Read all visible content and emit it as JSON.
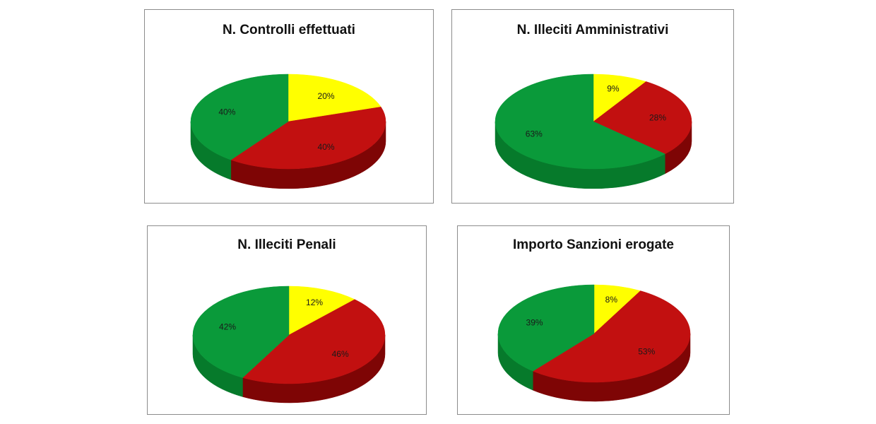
{
  "colors": {
    "green": "#0a9a3a",
    "green_side": "#067a2b",
    "red": "#c21010",
    "red_side": "#7e0505",
    "yellow": "#ffff00",
    "yellow_side": "#c8c800"
  },
  "chart_data": [
    {
      "type": "pie",
      "title": "N. Controlli effettuati",
      "slices": [
        {
          "label": "20%",
          "value": 20,
          "color": "yellow"
        },
        {
          "label": "40%",
          "value": 40,
          "color": "red"
        },
        {
          "label": "40%",
          "value": 40,
          "color": "green"
        }
      ]
    },
    {
      "type": "pie",
      "title": "N. Illeciti Amministrativi",
      "slices": [
        {
          "label": "9%",
          "value": 9,
          "color": "yellow"
        },
        {
          "label": "28%",
          "value": 28,
          "color": "red"
        },
        {
          "label": "63%",
          "value": 63,
          "color": "green"
        }
      ]
    },
    {
      "type": "pie",
      "title": "N. Illeciti Penali",
      "slices": [
        {
          "label": "12%",
          "value": 12,
          "color": "yellow"
        },
        {
          "label": "46%",
          "value": 46,
          "color": "red"
        },
        {
          "label": "42%",
          "value": 42,
          "color": "green"
        }
      ]
    },
    {
      "type": "pie",
      "title": "Importo Sanzioni erogate",
      "slices": [
        {
          "label": "8%",
          "value": 8,
          "color": "yellow"
        },
        {
          "label": "53%",
          "value": 53,
          "color": "red"
        },
        {
          "label": "39%",
          "value": 39,
          "color": "green"
        }
      ]
    }
  ]
}
